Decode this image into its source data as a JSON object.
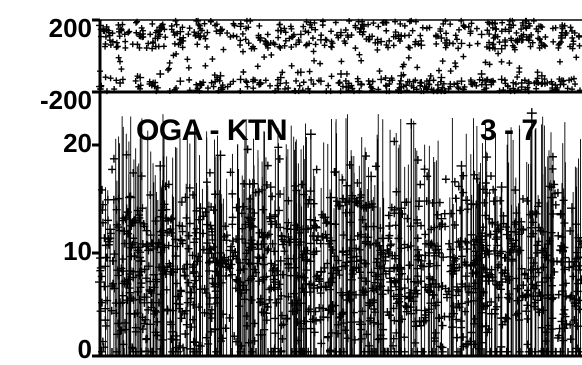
{
  "chart_data": [
    {
      "type": "scatter",
      "panel": "top",
      "title": "",
      "xlabel": "",
      "ylabel": "",
      "ylim": [
        -200,
        200
      ],
      "yticks": [
        "200",
        "-200"
      ],
      "marker": "+",
      "series": [
        {
          "description_of_values": "phase-like values spread between about -180 and 180",
          "x": [
            0,
            20,
            40,
            60,
            80,
            100,
            120,
            140,
            160,
            180,
            200,
            220,
            240,
            260,
            280,
            300,
            320,
            340,
            360,
            380,
            400,
            420,
            440,
            460
          ],
          "y": [
            170,
            150,
            120,
            160,
            135,
            110,
            145,
            165,
            100,
            140,
            120,
            90,
            130,
            150,
            80,
            110,
            60,
            100,
            70,
            120,
            40,
            90,
            60,
            100
          ]
        },
        {
          "x": [
            0,
            20,
            40,
            60,
            80,
            100,
            120,
            140,
            160,
            180,
            200,
            220,
            240,
            260,
            280,
            300,
            320,
            340,
            360,
            380,
            400,
            420,
            440,
            460
          ],
          "y": [
            -170,
            -150,
            -120,
            -100,
            -140,
            -160,
            -110,
            -130,
            -150,
            -120,
            -90,
            -140,
            -100,
            -160,
            -130,
            -110,
            -150,
            -120,
            -140,
            -100,
            -130,
            -150,
            -110,
            -140
          ]
        }
      ]
    },
    {
      "type": "scatter",
      "panel": "bottom",
      "title": "",
      "xlabel": "",
      "ylabel": "",
      "ylim": [
        0,
        25
      ],
      "yticks": [
        "20",
        "10",
        "0"
      ],
      "marker": "+",
      "annotations": [
        "OGA - KTN",
        "3 - 7"
      ],
      "x": [
        0,
        10,
        20,
        30,
        40,
        50,
        60,
        70,
        80,
        90,
        100,
        110,
        120,
        130,
        140,
        150,
        160,
        170,
        180,
        190,
        200,
        210,
        220,
        230,
        240,
        250,
        260,
        270,
        280,
        290,
        300,
        310,
        320,
        330,
        340,
        350,
        360,
        370,
        380,
        390,
        400,
        410,
        420,
        430,
        440,
        450,
        460,
        470
      ],
      "y": [
        7,
        12,
        5,
        15,
        9,
        3,
        18,
        8,
        11,
        6,
        14,
        4,
        19,
        10,
        7,
        13,
        2,
        16,
        9,
        12,
        5,
        21,
        8,
        15,
        6,
        11,
        3,
        17,
        10,
        7,
        14,
        22,
        9,
        5,
        13,
        8,
        18,
        6,
        11,
        4,
        16,
        9,
        12,
        23,
        7,
        15,
        10,
        14
      ]
    }
  ]
}
